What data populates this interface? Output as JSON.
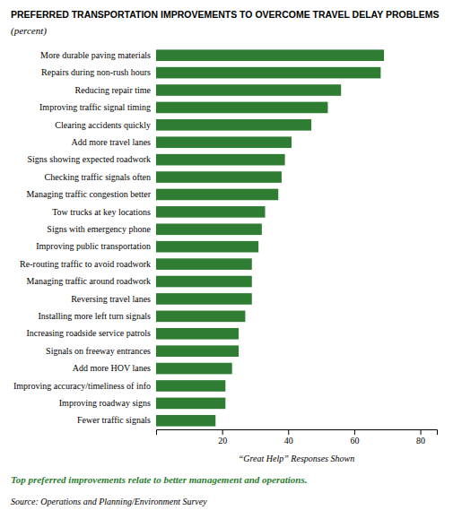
{
  "chart_data": {
    "type": "bar",
    "orientation": "horizontal",
    "title": "PREFERRED TRANSPORTATION IMPROVEMENTS TO OVERCOME TRAVEL DELAY PROBLEMS",
    "subtitle": "(percent)",
    "categories": [
      "More durable paving materials",
      "Repairs during non-rush hours",
      "Reducing repair time",
      "Improving traffic signal timing",
      "Clearing accidents quickly",
      "Add more travel lanes",
      "Signs showing expected roadwork",
      "Checking traffic signals often",
      "Managing traffic congestion better",
      "Tow trucks at key locations",
      "Signs with emergency phone",
      "Improving public transportation",
      "Re-routing traffic to avoid roadwork",
      "Managing traffic around roadwork",
      "Reversing travel lanes",
      "Installing more left turn signals",
      "Increasing roadside service patrols",
      "Signals on freeway entrances",
      "Add more HOV lanes",
      "Improving accuracy/timeliness of info",
      "Improving roadway signs",
      "Fewer traffic signals"
    ],
    "values": [
      69,
      68,
      56,
      52,
      47,
      41,
      39,
      38,
      37,
      33,
      32,
      31,
      29,
      29,
      29,
      27,
      25,
      25,
      23,
      21,
      21,
      18
    ],
    "color": "#2e7d32",
    "xlabel": "“Great Help” Responses Shown",
    "xlim": [
      0,
      85
    ],
    "xticks": [
      20,
      40,
      60,
      80
    ],
    "grid": false,
    "caption": "Top preferred improvements relate to better management and operations.",
    "source": "Source: Operations and Planning/Environment Survey"
  }
}
